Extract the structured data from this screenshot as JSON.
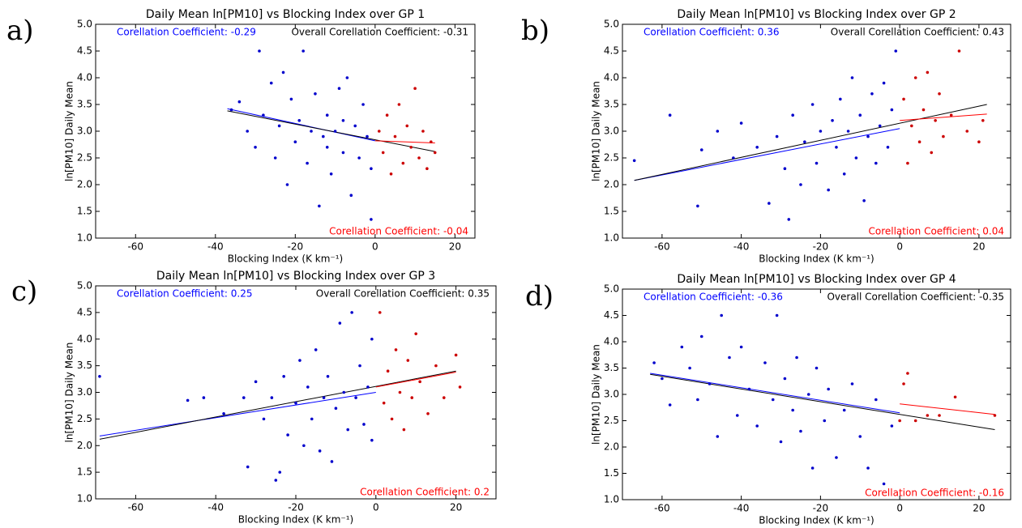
{
  "chart_data": [
    {
      "type": "scatter",
      "panel_label": "a)",
      "title": "Daily Mean ln[PM10] vs Blocking Index over GP 1",
      "x_label": "Blocking Index (K  km⁻¹)",
      "y_label": "ln[PM10] Daily Mean",
      "xlim": [
        -70,
        25
      ],
      "ylim": [
        1,
        5
      ],
      "xticks": [
        -60,
        -40,
        -20,
        0,
        20
      ],
      "yticks": [
        {
          "value": 1,
          "label": "1.0"
        },
        1.5,
        {
          "value": 2,
          "label": "2.0"
        },
        2.5,
        {
          "value": 3,
          "label": "3.0"
        },
        3.5,
        {
          "value": 4,
          "label": "4.0"
        },
        4.5,
        {
          "value": 5,
          "label": "5.0"
        }
      ],
      "annotations": [
        {
          "text": "Corellation Coefficient: -0.29",
          "color": "#0000ff"
        },
        {
          "text": "Overall Corellation Coefficient: -0.31",
          "color": "#000000"
        },
        {
          "text": "Corellation Coefficient: -0.04",
          "color": "#ff0000"
        }
      ],
      "scatter": [
        {
          "color": "#0000cc",
          "x": [
            -36,
            -34,
            -32,
            -30,
            -29,
            -28,
            -26,
            -25,
            -24,
            -23,
            -22,
            -21,
            -20,
            -19,
            -18,
            -17,
            -16,
            -15,
            -14,
            -13,
            -12,
            -11,
            -10,
            -9,
            -8,
            -7,
            -6,
            -5,
            -4,
            -3,
            -2,
            -1,
            -1,
            -12,
            -8
          ],
          "values": [
            3.4,
            3.55,
            3.0,
            2.7,
            4.5,
            3.3,
            3.9,
            2.5,
            3.1,
            4.1,
            2.0,
            3.6,
            2.8,
            3.2,
            4.5,
            2.4,
            3.0,
            3.7,
            1.6,
            2.9,
            3.3,
            2.2,
            3.0,
            3.8,
            2.6,
            4.0,
            1.8,
            3.1,
            2.5,
            3.5,
            2.9,
            2.3,
            1.35,
            2.7,
            3.2
          ]
        },
        {
          "color": "#cc0000",
          "x": [
            1,
            2,
            3,
            4,
            5,
            6,
            7,
            8,
            9,
            10,
            11,
            12,
            13,
            14,
            15
          ],
          "values": [
            3.0,
            2.6,
            3.3,
            2.2,
            2.9,
            3.5,
            2.4,
            3.1,
            2.7,
            3.8,
            2.5,
            3.0,
            2.3,
            2.8,
            2.6
          ]
        }
      ],
      "fits": [
        {
          "color": "#0000ff",
          "x": [
            -37,
            0
          ],
          "values": [
            3.42,
            2.82
          ]
        },
        {
          "color": "#000000",
          "x": [
            -37,
            15
          ],
          "values": [
            3.38,
            2.62
          ]
        },
        {
          "color": "#ff0000",
          "x": [
            0,
            15
          ],
          "values": [
            2.82,
            2.78
          ]
        }
      ]
    },
    {
      "type": "scatter",
      "panel_label": "b)",
      "title": "Daily Mean ln[PM10] vs Blocking Index over GP 2",
      "x_label": "Blocking Index (K  km⁻¹)",
      "y_label": "ln[PM10] Daily Mean",
      "xlim": [
        -70,
        28
      ],
      "ylim": [
        1,
        5
      ],
      "xticks": [
        -60,
        -40,
        -20,
        0,
        20
      ],
      "yticks": [
        {
          "value": 1,
          "label": "1.0"
        },
        1.5,
        {
          "value": 2,
          "label": "2.0"
        },
        2.5,
        {
          "value": 3,
          "label": "3.0"
        },
        3.5,
        {
          "value": 4,
          "label": "4.0"
        },
        4.5,
        {
          "value": 5,
          "label": "5.0"
        }
      ],
      "annotations": [
        {
          "text": "Corellation Coefficient: 0.36",
          "color": "#0000ff"
        },
        {
          "text": "Overall Corellation Coefficient: 0.43",
          "color": "#000000"
        },
        {
          "text": "Corellation Coefficient: 0.04",
          "color": "#ff0000"
        }
      ],
      "scatter": [
        {
          "color": "#0000cc",
          "x": [
            -67,
            -58,
            -51,
            -50,
            -46,
            -42,
            -40,
            -36,
            -33,
            -31,
            -29,
            -28,
            -27,
            -25,
            -24,
            -22,
            -21,
            -20,
            -18,
            -17,
            -16,
            -15,
            -14,
            -13,
            -12,
            -11,
            -10,
            -9,
            -8,
            -7,
            -6,
            -5,
            -4,
            -3,
            -1,
            -2
          ],
          "values": [
            2.45,
            3.3,
            1.6,
            2.65,
            3.0,
            2.5,
            3.15,
            2.7,
            1.65,
            2.9,
            2.3,
            1.35,
            3.3,
            2.0,
            2.8,
            3.5,
            2.4,
            3.0,
            1.9,
            3.2,
            2.7,
            3.6,
            2.2,
            3.0,
            4.0,
            2.5,
            3.3,
            1.7,
            2.9,
            3.7,
            2.4,
            3.1,
            3.9,
            2.7,
            4.5,
            3.4
          ]
        },
        {
          "color": "#cc0000",
          "x": [
            1,
            2,
            3,
            4,
            5,
            6,
            7,
            8,
            9,
            10,
            11,
            13,
            15,
            17,
            20,
            21
          ],
          "values": [
            3.6,
            2.4,
            3.1,
            4.0,
            2.8,
            3.4,
            4.1,
            2.6,
            3.2,
            3.7,
            2.9,
            3.3,
            4.5,
            3.0,
            2.8,
            3.2
          ]
        }
      ],
      "fits": [
        {
          "color": "#0000ff",
          "x": [
            -67,
            0
          ],
          "values": [
            2.08,
            3.05
          ]
        },
        {
          "color": "#000000",
          "x": [
            -67,
            22
          ],
          "values": [
            2.08,
            3.5
          ]
        },
        {
          "color": "#ff0000",
          "x": [
            0,
            22
          ],
          "values": [
            3.2,
            3.32
          ]
        }
      ]
    },
    {
      "type": "scatter",
      "panel_label": "c)",
      "title": "Daily Mean ln[PM10] vs Blocking Index over GP 3",
      "x_label": "Blocking Index (K  km⁻¹)",
      "y_label": "ln[PM10] Daily Mean",
      "xlim": [
        -70,
        30
      ],
      "ylim": [
        1,
        5
      ],
      "xticks": [
        -60,
        -40,
        -20,
        0,
        20
      ],
      "yticks": [
        {
          "value": 1,
          "label": "1.0"
        },
        1.5,
        {
          "value": 2,
          "label": "2.0"
        },
        2.5,
        {
          "value": 3,
          "label": "3.0"
        },
        3.5,
        {
          "value": 4,
          "label": "4.0"
        },
        4.5,
        {
          "value": 5,
          "label": "5.0"
        }
      ],
      "annotations": [
        {
          "text": "Corellation Coefficient: 0.25",
          "color": "#0000ff"
        },
        {
          "text": "Overall Corellation Coefficient: 0.35",
          "color": "#000000"
        },
        {
          "text": "Corellation Coefficient: 0.2",
          "color": "#ff0000"
        }
      ],
      "scatter": [
        {
          "color": "#0000cc",
          "x": [
            -69,
            -47,
            -43,
            -38,
            -33,
            -32,
            -30,
            -28,
            -26,
            -25,
            -24,
            -23,
            -22,
            -20,
            -19,
            -18,
            -17,
            -16,
            -15,
            -14,
            -13,
            -12,
            -11,
            -10,
            -9,
            -8,
            -7,
            -6,
            -5,
            -4,
            -3,
            -2,
            -1,
            -1
          ],
          "values": [
            3.3,
            2.85,
            2.9,
            2.6,
            2.9,
            1.6,
            3.2,
            2.5,
            2.9,
            1.35,
            1.5,
            3.3,
            2.2,
            2.8,
            3.6,
            2.0,
            3.1,
            2.5,
            3.8,
            1.9,
            2.9,
            3.3,
            1.7,
            2.7,
            4.3,
            3.0,
            2.3,
            4.5,
            2.9,
            3.5,
            2.4,
            3.1,
            2.1,
            4.0
          ]
        },
        {
          "color": "#cc0000",
          "x": [
            1,
            2,
            3,
            4,
            5,
            6,
            7,
            8,
            9,
            10,
            11,
            13,
            15,
            17,
            20,
            21
          ],
          "values": [
            4.5,
            2.8,
            3.4,
            2.5,
            3.8,
            3.0,
            2.3,
            3.6,
            2.9,
            4.1,
            3.2,
            2.6,
            3.5,
            2.9,
            3.7,
            3.1
          ]
        }
      ],
      "fits": [
        {
          "color": "#0000ff",
          "x": [
            -69,
            0
          ],
          "values": [
            2.18,
            3.0
          ]
        },
        {
          "color": "#000000",
          "x": [
            -69,
            20
          ],
          "values": [
            2.12,
            3.4
          ]
        },
        {
          "color": "#ff0000",
          "x": [
            0,
            20
          ],
          "values": [
            3.1,
            3.38
          ]
        }
      ]
    },
    {
      "type": "scatter",
      "panel_label": "d)",
      "title": "Daily Mean ln[PM10] vs Blocking Index over GP 4",
      "x_label": "Blocking Index (K  km⁻¹)",
      "y_label": "ln[PM10] Daily Mean",
      "xlim": [
        -70,
        28
      ],
      "ylim": [
        1,
        5
      ],
      "xticks": [
        -60,
        -40,
        -20,
        0,
        20
      ],
      "yticks": [
        {
          "value": 1,
          "label": "1.0"
        },
        1.5,
        {
          "value": 2,
          "label": "2.0"
        },
        2.5,
        {
          "value": 3,
          "label": "3.0"
        },
        3.5,
        {
          "value": 4,
          "label": "4.0"
        },
        4.5,
        {
          "value": 5,
          "label": "5.0"
        }
      ],
      "annotations": [
        {
          "text": "Corellation Coefficient: -0.36",
          "color": "#0000ff"
        },
        {
          "text": "Overall Corellation Coefficient: -0.35",
          "color": "#000000"
        },
        {
          "text": "Corellation Coefficient: -0.16",
          "color": "#ff0000"
        }
      ],
      "scatter": [
        {
          "color": "#0000cc",
          "x": [
            -62,
            -60,
            -58,
            -55,
            -53,
            -51,
            -50,
            -48,
            -46,
            -45,
            -43,
            -41,
            -40,
            -38,
            -36,
            -34,
            -32,
            -31,
            -30,
            -29,
            -27,
            -26,
            -25,
            -23,
            -22,
            -21,
            -19,
            -18,
            -16,
            -14,
            -12,
            -10,
            -8,
            -6,
            -4,
            -2
          ],
          "values": [
            3.6,
            3.3,
            2.8,
            3.9,
            3.5,
            2.9,
            4.1,
            3.2,
            2.2,
            4.5,
            3.7,
            2.6,
            3.9,
            3.1,
            2.4,
            3.6,
            2.9,
            4.5,
            2.1,
            3.3,
            2.7,
            3.7,
            2.3,
            3.0,
            1.6,
            3.5,
            2.5,
            3.1,
            1.8,
            2.7,
            3.2,
            2.2,
            1.6,
            2.9,
            1.3,
            2.4
          ]
        },
        {
          "color": "#cc0000",
          "x": [
            0,
            1,
            2,
            4,
            7,
            10,
            14,
            24
          ],
          "values": [
            2.5,
            3.2,
            3.4,
            2.5,
            2.6,
            2.6,
            2.95,
            2.6
          ]
        }
      ],
      "fits": [
        {
          "color": "#0000ff",
          "x": [
            -63,
            0
          ],
          "values": [
            3.4,
            2.65
          ]
        },
        {
          "color": "#000000",
          "x": [
            -63,
            24
          ],
          "values": [
            3.38,
            2.33
          ]
        },
        {
          "color": "#ff0000",
          "x": [
            0,
            24
          ],
          "values": [
            2.82,
            2.62
          ]
        }
      ]
    }
  ]
}
